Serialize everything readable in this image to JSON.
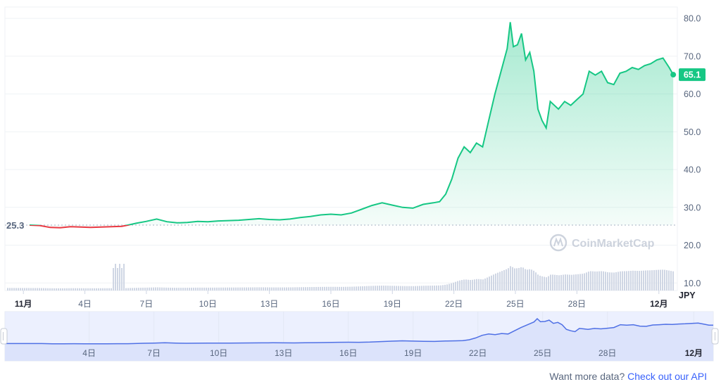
{
  "chart_data": {
    "type": "line",
    "currency_label": "JPY",
    "start_label": "25.3",
    "current_label": "65.1",
    "start_value": 25.3,
    "current_value": 65.1,
    "y_ticks": [
      "80.0",
      "70.0",
      "60.0",
      "50.0",
      "40.0",
      "30.0",
      "20.0",
      "10.0"
    ],
    "y_tick_values": [
      80,
      70,
      60,
      50,
      40,
      30,
      20,
      10
    ],
    "ylim": [
      8,
      83
    ],
    "x_ticks": [
      "11月",
      "4日",
      "7日",
      "10日",
      "13日",
      "16日",
      "19日",
      "22日",
      "25日",
      "28日",
      "12月"
    ],
    "x_tick_days": [
      1,
      4,
      7,
      10,
      13,
      16,
      19,
      22,
      25,
      28,
      32
    ],
    "navigator_ticks": [
      "4日",
      "7日",
      "10日",
      "13日",
      "16日",
      "19日",
      "22日",
      "25日",
      "28日",
      "12月"
    ],
    "navigator_tick_days": [
      4,
      7,
      10,
      13,
      16,
      19,
      22,
      25,
      28,
      32
    ],
    "xlim_days": [
      0.1,
      32.9
    ],
    "series": [
      {
        "type": "line",
        "x_days": [
          1.3,
          1.8,
          2.3,
          2.8,
          3.3,
          3.8,
          4.3,
          4.8,
          5.3,
          5.8,
          6.1,
          6.5,
          7.0,
          7.5,
          8.0,
          8.5,
          9.0,
          9.5,
          10.0,
          10.5,
          11.0,
          11.5,
          12.0,
          12.5,
          13.0,
          13.5,
          14.0,
          14.5,
          15.0,
          15.5,
          16.0,
          16.5,
          17.0,
          17.5,
          18.0,
          18.5,
          19.0,
          19.5,
          20.0,
          20.5,
          21.0,
          21.3,
          21.6,
          21.9,
          22.2,
          22.5,
          22.8,
          23.1,
          23.4,
          23.7,
          24.0,
          24.2,
          24.4,
          24.6,
          24.75,
          24.9,
          25.1,
          25.3,
          25.5,
          25.7,
          25.9,
          26.1,
          26.3,
          26.5,
          26.7,
          26.9,
          27.1,
          27.4,
          27.7,
          28.0,
          28.3,
          28.6,
          28.9,
          29.2,
          29.5,
          29.8,
          30.1,
          30.4,
          30.7,
          31.0,
          31.3,
          31.6,
          31.9,
          32.2,
          32.5,
          32.7
        ],
        "values": [
          25.3,
          25.2,
          24.7,
          24.6,
          24.9,
          24.8,
          24.7,
          24.8,
          24.9,
          25.0,
          25.3,
          25.8,
          26.3,
          26.9,
          26.2,
          25.9,
          26.0,
          26.3,
          26.2,
          26.4,
          26.5,
          26.6,
          26.8,
          27.0,
          26.8,
          26.7,
          26.9,
          27.3,
          27.6,
          28.0,
          28.2,
          28.0,
          28.5,
          29.5,
          30.5,
          31.2,
          30.6,
          30.0,
          29.8,
          30.8,
          31.2,
          31.5,
          33.5,
          37.5,
          43.0,
          46.0,
          44.5,
          47.0,
          46.0,
          53.0,
          60.0,
          64.0,
          68.0,
          72.0,
          79.0,
          72.5,
          73.0,
          76.0,
          69.0,
          71.0,
          66.0,
          56.0,
          53.0,
          51.0,
          58.0,
          57.0,
          56.0,
          58.0,
          57.0,
          58.5,
          60.0,
          66.0,
          65.0,
          66.0,
          63.0,
          62.5,
          65.5,
          66.0,
          67.0,
          66.5,
          67.5,
          68.0,
          69.0,
          69.5,
          67.0,
          65.1
        ]
      }
    ]
  },
  "watermark": "CoinMarketCap",
  "footer": {
    "text": "Want more data?",
    "link": "Check out our API"
  },
  "colors": {
    "up": "#16c784",
    "down": "#ea3943",
    "navigator_line": "#4f70e5",
    "navigator_fill": "#e7ecfd",
    "volume": "#cfd6e4",
    "grid": "#eff2f5"
  }
}
